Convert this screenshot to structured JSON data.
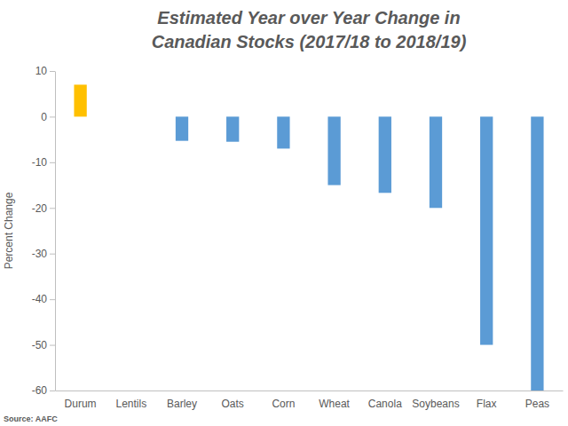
{
  "chart_data": {
    "type": "bar",
    "title": "Estimated Year over Year Change in Canadian Stocks (2017/18 to 2018/19)",
    "y_label": "Percent Change",
    "annotations": [
      "Source: AAFC"
    ],
    "categories": [
      "Durum",
      "Lentils",
      "Barley",
      "Oats",
      "Corn",
      "Wheat",
      "Canola",
      "Soybeans",
      "Flax",
      "Peas"
    ],
    "values": [
      7,
      0,
      -5.3,
      -5.5,
      -7,
      -15,
      -16.7,
      -20,
      -50,
      -60
    ],
    "colors": [
      "#ffc000",
      "#5b9bd5",
      "#5b9bd5",
      "#5b9bd5",
      "#5b9bd5",
      "#5b9bd5",
      "#5b9bd5",
      "#5b9bd5",
      "#5b9bd5",
      "#5b9bd5"
    ],
    "ylim": [
      -60,
      10
    ],
    "yticks": [
      -60,
      -50,
      -40,
      -30,
      -20,
      -10,
      0,
      10
    ],
    "grid": false
  }
}
